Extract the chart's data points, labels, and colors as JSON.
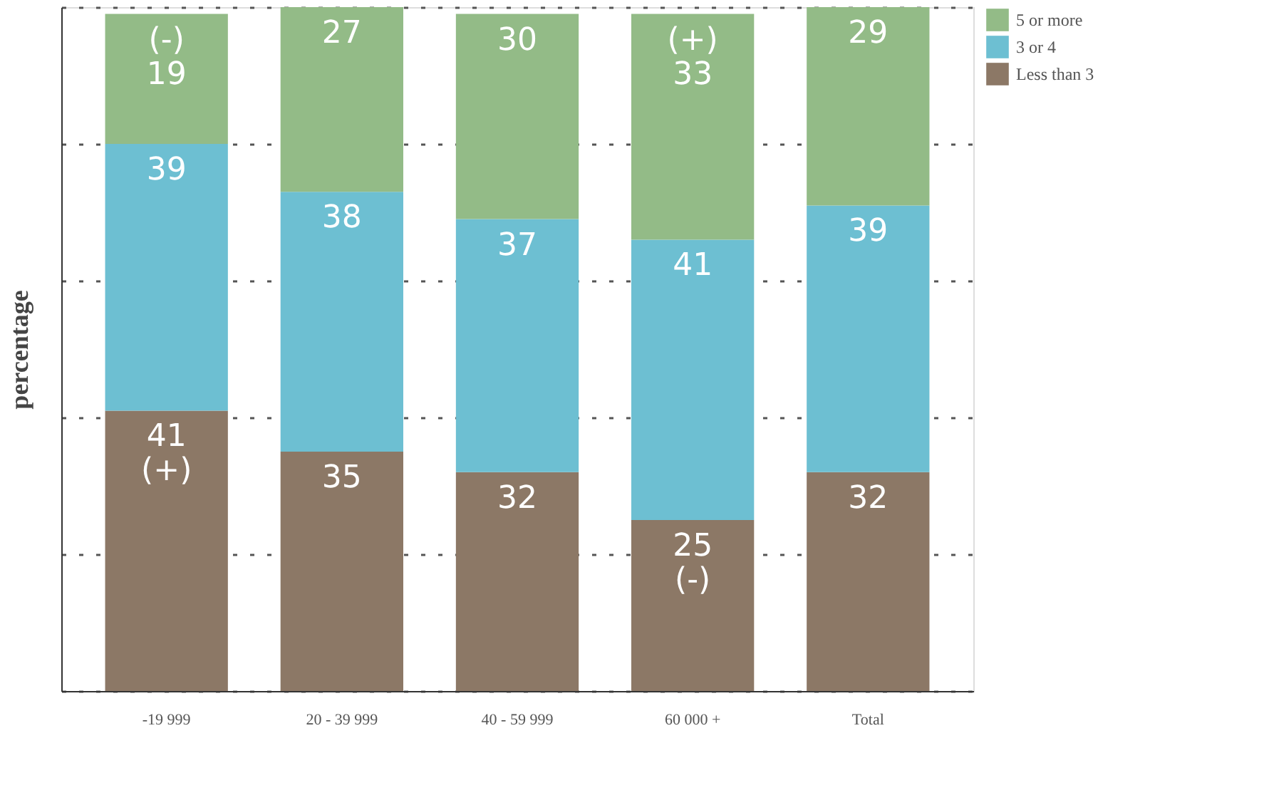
{
  "chart_data": {
    "type": "bar",
    "stacked": true,
    "ylabel": "percentage",
    "categories": [
      "-19 999",
      "20 - 39 999",
      "40 - 59 999",
      "60 000 +",
      "Total"
    ],
    "series": [
      {
        "name": "Less than 3",
        "color": "#8c7866",
        "values": [
          41,
          35,
          32,
          25,
          32
        ],
        "value_labels": [
          "41 (+)",
          "35",
          "32",
          "25 (-)",
          "32"
        ]
      },
      {
        "name": "3 or 4",
        "color": "#6dbfd2",
        "values": [
          39,
          38,
          37,
          41,
          39
        ],
        "value_labels": [
          "39",
          "38",
          "37",
          "41",
          "39"
        ]
      },
      {
        "name": "5 or more",
        "color": "#93bb87",
        "values": [
          19,
          27,
          30,
          33,
          29
        ],
        "value_labels": [
          "(-) 19",
          "27",
          "30",
          "(+) 33",
          "29"
        ]
      }
    ],
    "ylim": [
      0,
      100
    ],
    "yticks": [
      {
        "value": 0,
        "label": null
      },
      {
        "value": 20,
        "label": null
      },
      {
        "value": 40,
        "label": null
      },
      {
        "value": 60,
        "label": null
      },
      {
        "value": 80,
        "label": null
      },
      {
        "value": 100,
        "label": null
      }
    ],
    "tick_labels": "x",
    "grid": "y",
    "legend": "right"
  }
}
